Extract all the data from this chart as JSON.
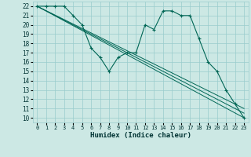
{
  "xlabel": "Humidex (Indice chaleur)",
  "bg_color": "#cce8e4",
  "grid_color": "#99cccc",
  "line_color": "#006655",
  "xlim": [
    -0.5,
    23.5
  ],
  "ylim": [
    9.5,
    22.5
  ],
  "xticks": [
    0,
    1,
    2,
    3,
    4,
    5,
    6,
    7,
    8,
    9,
    10,
    11,
    12,
    13,
    14,
    15,
    16,
    17,
    18,
    19,
    20,
    21,
    22,
    23
  ],
  "yticks": [
    10,
    11,
    12,
    13,
    14,
    15,
    16,
    17,
    18,
    19,
    20,
    21,
    22
  ],
  "series_main": {
    "x": [
      0,
      1,
      2,
      3,
      4,
      5,
      6,
      7,
      8,
      9,
      10,
      11,
      12,
      13,
      14,
      15,
      16,
      17,
      18,
      19,
      20,
      21,
      22,
      23
    ],
    "y": [
      22,
      22,
      22,
      22,
      21,
      20,
      17.5,
      16.5,
      15,
      16.5,
      17,
      17,
      20,
      19.5,
      21.5,
      21.5,
      21,
      21,
      18.5,
      16,
      15,
      13,
      11.5,
      10
    ]
  },
  "straight_lines": [
    {
      "x": [
        0,
        23
      ],
      "y": [
        22,
        10
      ]
    },
    {
      "x": [
        0,
        23
      ],
      "y": [
        22,
        10.5
      ]
    },
    {
      "x": [
        0,
        23
      ],
      "y": [
        22,
        11
      ]
    }
  ]
}
